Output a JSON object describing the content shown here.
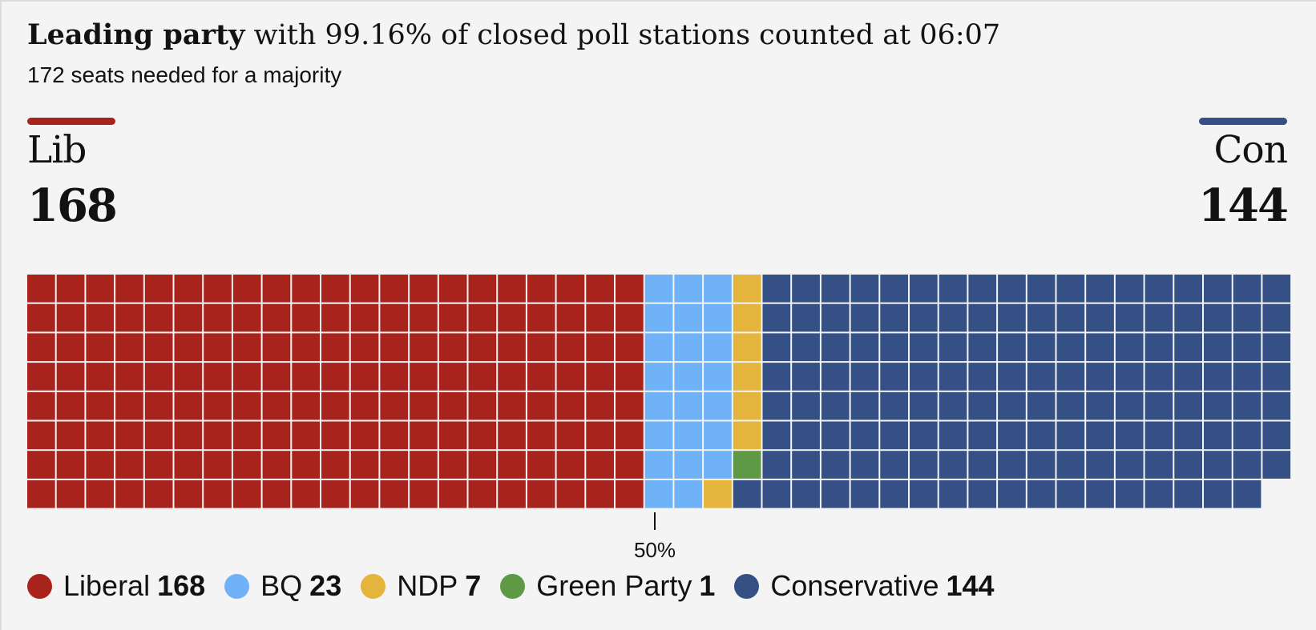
{
  "header": {
    "title_bold": "Leading party",
    "title_rest": " with 99.16% of closed poll stations counted at 06:07",
    "subtitle": "172 seats needed for a majority"
  },
  "leaders": {
    "left": {
      "name": "Lib",
      "seats": "168",
      "color": "#a8231c"
    },
    "right": {
      "name": "Con",
      "seats": "144",
      "color": "#345084"
    }
  },
  "marker": {
    "label": "50%"
  },
  "colors": {
    "background": "#f4f4f4",
    "text": "#121212"
  },
  "chart_data": {
    "type": "waffle",
    "title": "Leading party with 99.16% of closed poll stations counted at 06:07",
    "subtitle": "172 seats needed for a majority",
    "rows": 8,
    "total_seats": 343,
    "majority": 172,
    "reference_line": {
      "label": "50%",
      "value": 0.5
    },
    "series": [
      {
        "name": "Liberal",
        "value": 168,
        "color": "#a8231c"
      },
      {
        "name": "BQ",
        "value": 23,
        "color": "#6fb2f7"
      },
      {
        "name": "NDP",
        "value": 7,
        "color": "#e5b43c"
      },
      {
        "name": "Green Party",
        "value": 1,
        "color": "#5e9a46"
      },
      {
        "name": "Conservative",
        "value": 144,
        "color": "#345084"
      }
    ]
  },
  "legend": [
    {
      "name": "Liberal",
      "value": "168",
      "color": "#a8231c"
    },
    {
      "name": "BQ",
      "value": "23",
      "color": "#6fb2f7"
    },
    {
      "name": "NDP",
      "value": "7",
      "color": "#e5b43c"
    },
    {
      "name": "Green Party",
      "value": "1",
      "color": "#5e9a46"
    },
    {
      "name": "Conservative",
      "value": "144",
      "color": "#345084"
    }
  ]
}
